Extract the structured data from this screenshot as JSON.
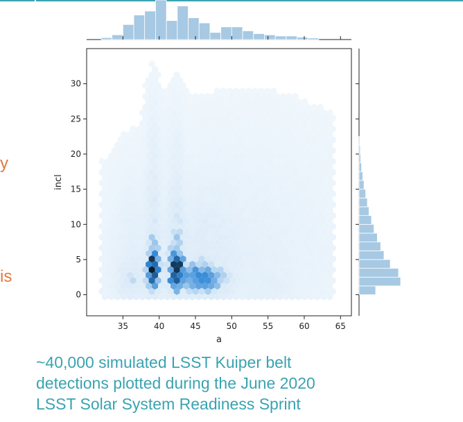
{
  "colors": {
    "accent_teal": "#3aa3b0",
    "orange": "#e07a3e",
    "hex_dark": "#0a1e33",
    "hex_mid": "#2f87d6",
    "hex_light": "#dcebf8",
    "hist_fill": "#a7c9e3",
    "hist_edge": "#6fa6cf"
  },
  "side_text": {
    "frag_y": "y",
    "frag_is": "is"
  },
  "caption": {
    "line1": "~40,000 simulated LSST Kuiper belt",
    "line2": "detections plotted during the June 2020",
    "line3": "LSST Solar System Readiness Sprint"
  },
  "chart_data": {
    "type": "heatmap",
    "subtype": "hexbin jointplot with marginal histograms",
    "xlabel": "a",
    "ylabel": "incl",
    "xlim": [
      30,
      66.5
    ],
    "ylim": [
      -3,
      35
    ],
    "xticks": [
      35,
      40,
      45,
      50,
      55,
      60,
      65
    ],
    "yticks": [
      0,
      5,
      10,
      15,
      20,
      25,
      30
    ],
    "n_points": 40000,
    "density_peaks": [
      {
        "a": 39.2,
        "incl": 3.5,
        "density": 1.0
      },
      {
        "a": 42.3,
        "incl": 3.5,
        "density": 0.95
      },
      {
        "a": 45.2,
        "incl": 2.3,
        "density": 0.55
      },
      {
        "a": 48.0,
        "incl": 1.8,
        "density": 0.4
      },
      {
        "a": 36.0,
        "incl": 2.0,
        "density": 0.35
      }
    ],
    "marginal_a": {
      "bin_edges": [
        32,
        33.5,
        35,
        36.5,
        38,
        39.5,
        41,
        42.5,
        44,
        45.5,
        47,
        48.5,
        50,
        51.5,
        53,
        54.5,
        56,
        57.5,
        59,
        60.5,
        62
      ],
      "counts": [
        0.05,
        0.12,
        0.38,
        0.62,
        0.72,
        1.0,
        0.48,
        0.85,
        0.55,
        0.42,
        0.18,
        0.32,
        0.32,
        0.22,
        0.15,
        0.12,
        0.09,
        0.09,
        0.06,
        0.04
      ]
    },
    "marginal_incl": {
      "bin_edges": [
        0,
        1.25,
        2.5,
        3.75,
        5,
        6.25,
        7.5,
        8.75,
        10,
        11.25,
        12.5,
        13.75,
        15,
        16.25,
        17.5,
        18.75,
        20,
        21.25,
        22.5
      ],
      "counts": [
        0.4,
        1.0,
        0.95,
        0.75,
        0.6,
        0.52,
        0.44,
        0.36,
        0.3,
        0.24,
        0.2,
        0.16,
        0.12,
        0.09,
        0.06,
        0.04,
        0.03,
        0.02
      ]
    }
  }
}
